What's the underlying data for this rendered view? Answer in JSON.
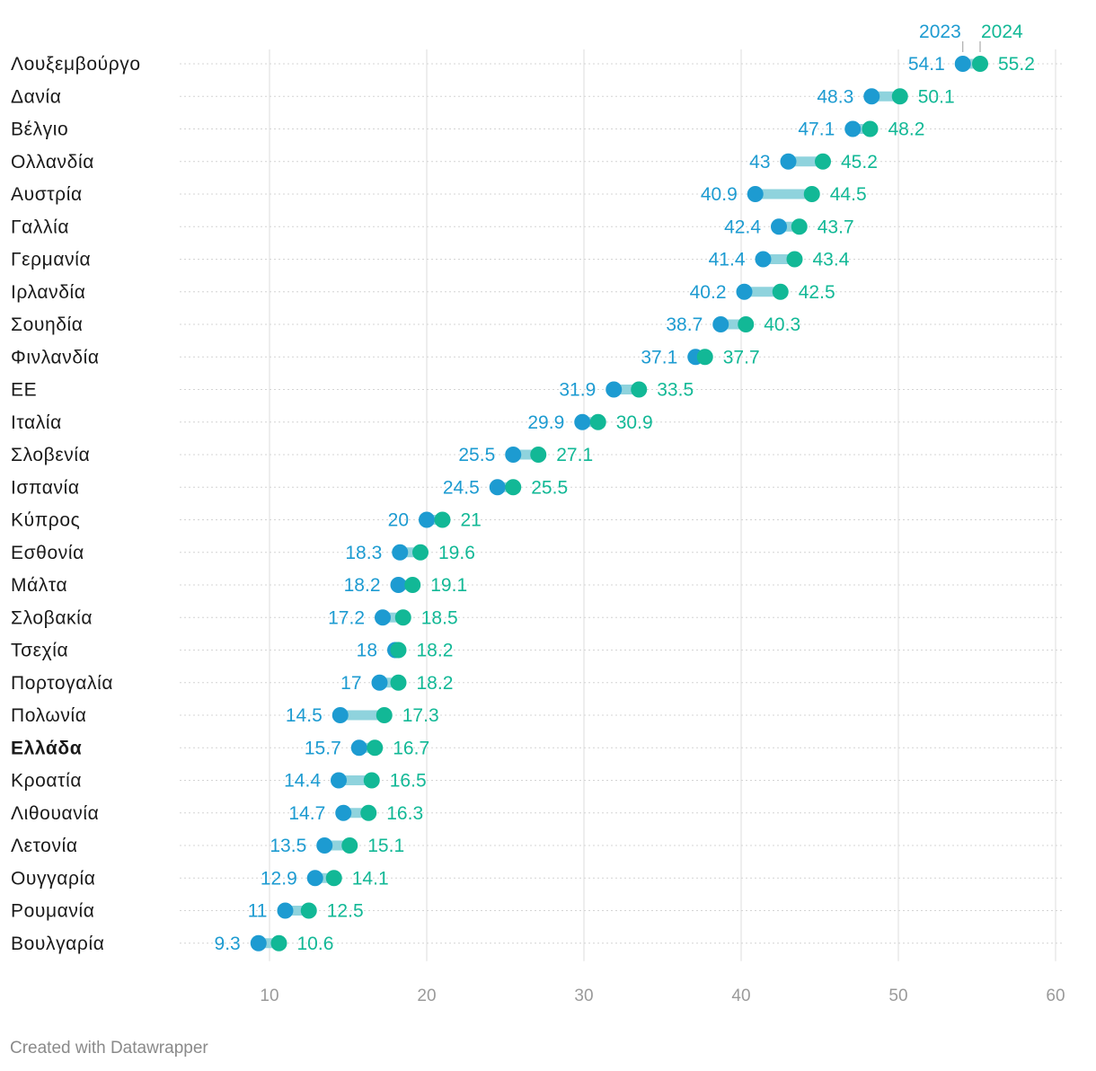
{
  "chart_data": {
    "type": "dot-range",
    "series": [
      {
        "name": "2023",
        "color": "#1d9bd1"
      },
      {
        "name": "2024",
        "color": "#12b896"
      }
    ],
    "connector_color": "#8fd3dd",
    "highlighted_category": "Ελλάδα",
    "xlim": [
      5,
      61
    ],
    "xticks": [
      10,
      20,
      30,
      40,
      50,
      60
    ],
    "grid": true,
    "rows": [
      {
        "label": "Λουξεμβούργο",
        "v2023": 54.1,
        "v2024": 55.2
      },
      {
        "label": "Δανία",
        "v2023": 48.3,
        "v2024": 50.1
      },
      {
        "label": "Βέλγιο",
        "v2023": 47.1,
        "v2024": 48.2
      },
      {
        "label": "Ολλανδία",
        "v2023": 43,
        "v2024": 45.2
      },
      {
        "label": "Αυστρία",
        "v2023": 40.9,
        "v2024": 44.5
      },
      {
        "label": "Γαλλία",
        "v2023": 42.4,
        "v2024": 43.7
      },
      {
        "label": "Γερμανία",
        "v2023": 41.4,
        "v2024": 43.4
      },
      {
        "label": "Ιρλανδία",
        "v2023": 40.2,
        "v2024": 42.5
      },
      {
        "label": "Σουηδία",
        "v2023": 38.7,
        "v2024": 40.3
      },
      {
        "label": "Φινλανδία",
        "v2023": 37.1,
        "v2024": 37.7
      },
      {
        "label": "ΕΕ",
        "v2023": 31.9,
        "v2024": 33.5
      },
      {
        "label": "Ιταλία",
        "v2023": 29.9,
        "v2024": 30.9
      },
      {
        "label": "Σλοβενία",
        "v2023": 25.5,
        "v2024": 27.1
      },
      {
        "label": "Ισπανία",
        "v2023": 24.5,
        "v2024": 25.5
      },
      {
        "label": "Κύπρος",
        "v2023": 20,
        "v2024": 21
      },
      {
        "label": "Εσθονία",
        "v2023": 18.3,
        "v2024": 19.6
      },
      {
        "label": "Μάλτα",
        "v2023": 18.2,
        "v2024": 19.1
      },
      {
        "label": "Σλοβακία",
        "v2023": 17.2,
        "v2024": 18.5
      },
      {
        "label": "Τσεχία",
        "v2023": 18,
        "v2024": 18.2
      },
      {
        "label": "Πορτογαλία",
        "v2023": 17,
        "v2024": 18.2
      },
      {
        "label": "Πολωνία",
        "v2023": 14.5,
        "v2024": 17.3
      },
      {
        "label": "Ελλάδα",
        "v2023": 15.7,
        "v2024": 16.7
      },
      {
        "label": "Κροατία",
        "v2023": 14.4,
        "v2024": 16.5
      },
      {
        "label": "Λιθουανία",
        "v2023": 14.7,
        "v2024": 16.3
      },
      {
        "label": "Λετονία",
        "v2023": 13.5,
        "v2024": 15.1
      },
      {
        "label": "Ουγγαρία",
        "v2023": 12.9,
        "v2024": 14.1
      },
      {
        "label": "Ρουμανία",
        "v2023": 11,
        "v2024": 12.5
      },
      {
        "label": "Βουλγαρία",
        "v2023": 9.3,
        "v2024": 10.6
      }
    ]
  },
  "footer": "Created with Datawrapper"
}
